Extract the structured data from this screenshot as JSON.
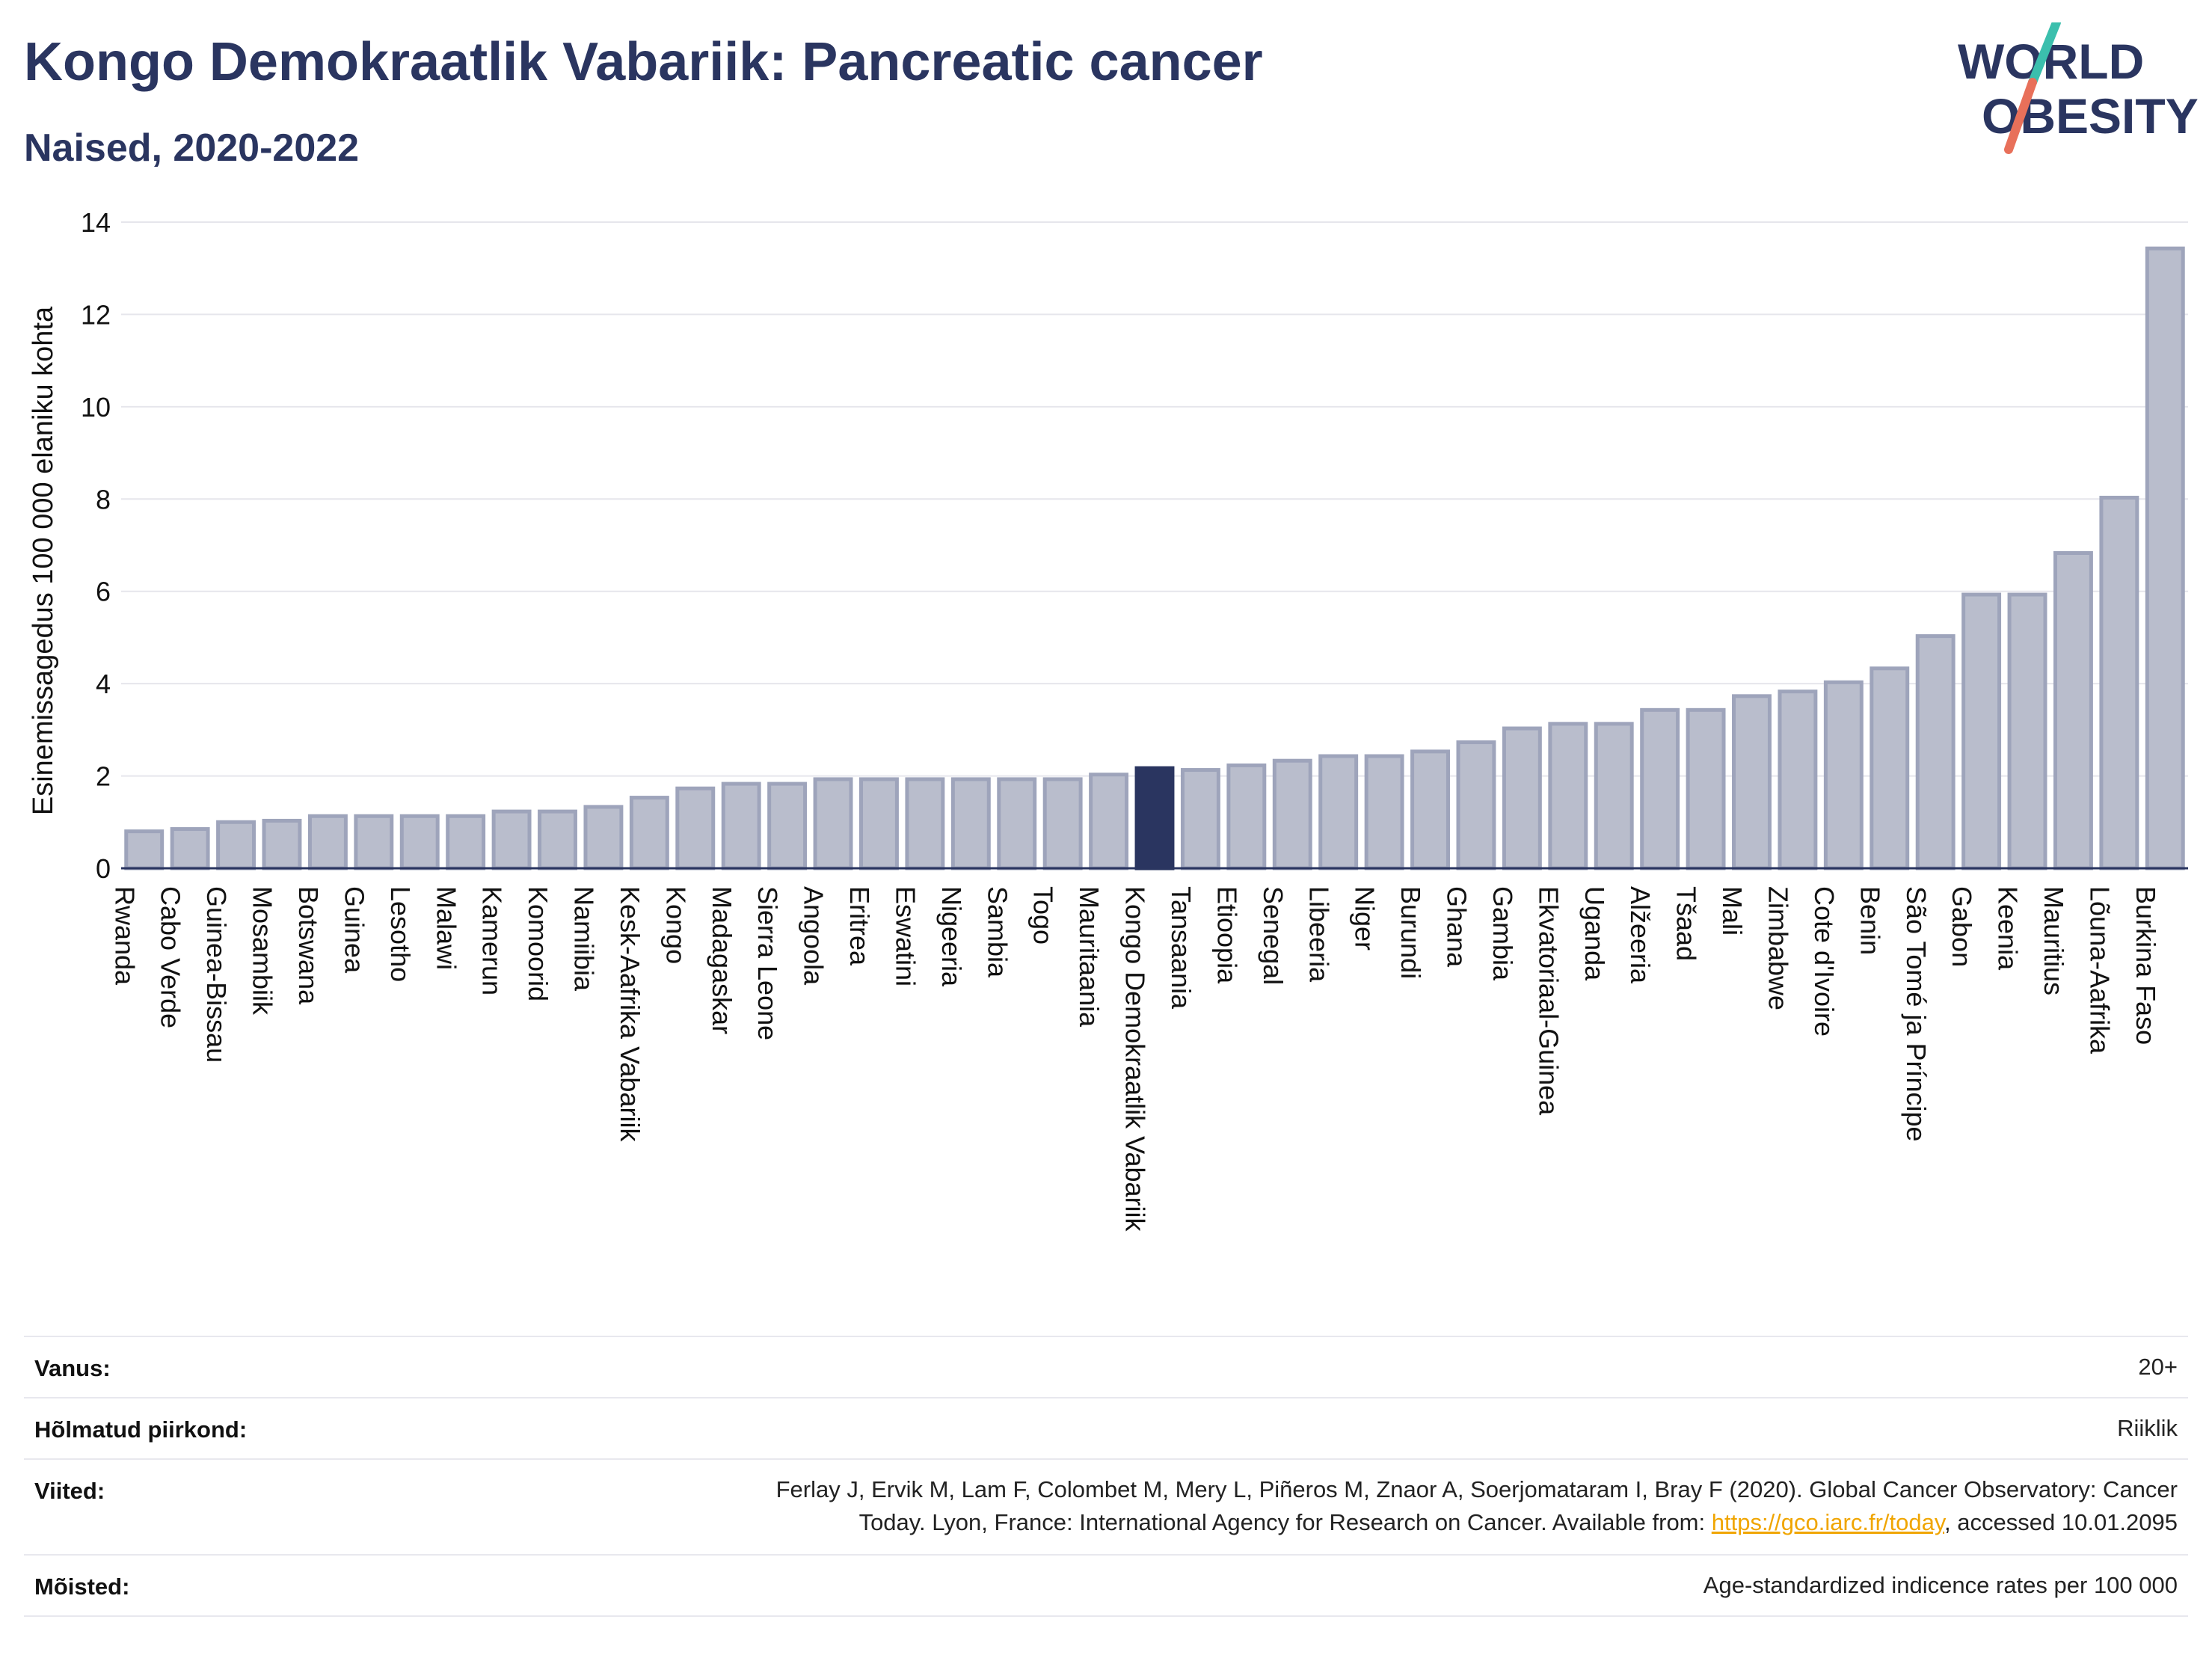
{
  "header": {
    "title": "Kongo Demokraatlik Vabariik: Pancreatic cancer",
    "subtitle": "Naised, 2020-2022"
  },
  "logo": {
    "line1": "WORLD",
    "line2": "OBESITY",
    "colors": {
      "text": "#2a3560",
      "slash_top": "#3bbfad",
      "slash_bottom": "#e8705a"
    }
  },
  "chart_data": {
    "type": "bar",
    "title": "",
    "xlabel": "",
    "ylabel": "Esinemissagedus 100 000 elaniku kohta",
    "ylim": [
      0,
      14
    ],
    "yticks": [
      0,
      2,
      4,
      6,
      8,
      10,
      12,
      14
    ],
    "grid": true,
    "highlight": "Kongo Demokraatlik Vabariik",
    "colors": {
      "bar": "#b9bdcc",
      "bar_edge": "#9ea4bb",
      "highlight": "#2a3560",
      "grid": "#e6e6ec",
      "axis": "#2a3560"
    },
    "categories": [
      "Rwanda",
      "Cabo Verde",
      "Guinea-Bissau",
      "Mosambiik",
      "Botswana",
      "Guinea",
      "Lesotho",
      "Malawi",
      "Kamerun",
      "Komoorid",
      "Namiibia",
      "Kesk-Aafrika Vabariik",
      "Kongo",
      "Madagaskar",
      "Sierra Leone",
      "Angoola",
      "Eritrea",
      "Eswatini",
      "Nigeeria",
      "Sambia",
      "Togo",
      "Mauritaania",
      "Kongo Demokraatlik Vabariik",
      "Tansaania",
      "Etioopia",
      "Senegal",
      "Libeeria",
      "Niger",
      "Burundi",
      "Ghana",
      "Gambia",
      "Ekvatoriaal-Guinea",
      "Uganda",
      "Alžeeria",
      "Tšaad",
      "Mali",
      "Zimbabwe",
      "Cote d'Ivoire",
      "Benin",
      "São Tomé ja Príncipe",
      "Gabon",
      "Keenia",
      "Mauritius",
      "Lõuna-Aafrika",
      "Burkina Faso"
    ],
    "values": [
      0.8,
      0.85,
      1.0,
      1.03,
      1.13,
      1.13,
      1.13,
      1.13,
      1.23,
      1.23,
      1.33,
      1.53,
      1.73,
      1.83,
      1.83,
      1.93,
      1.93,
      1.93,
      1.93,
      1.93,
      1.93,
      2.03,
      2.17,
      2.13,
      2.23,
      2.33,
      2.43,
      2.43,
      2.53,
      2.73,
      3.03,
      3.13,
      3.13,
      3.43,
      3.43,
      3.73,
      3.83,
      4.03,
      4.33,
      5.03,
      5.93,
      5.93,
      6.83,
      8.03,
      13.43
    ]
  },
  "meta": {
    "age_label": "Vanus:",
    "age_value": "20+",
    "region_label": "Hõlmatud piirkond:",
    "region_value": "Riiklik",
    "refs_label": "Viited:",
    "refs_line1": "Ferlay J, Ervik M, Lam F, Colombet M, Mery L, Piñeros M, Znaor A, Soerjomataram I, Bray F (2020). Global Cancer Observatory: Cancer",
    "refs_line2_pre": "Today. Lyon, France: International Agency for Research on Cancer. Available from: ",
    "refs_link": "https://gco.iarc.fr/today",
    "refs_line2_post": ", accessed 10.01.2095",
    "def_label": "Mõisted:",
    "def_value": "Age-standardized indicence rates per 100 000"
  }
}
